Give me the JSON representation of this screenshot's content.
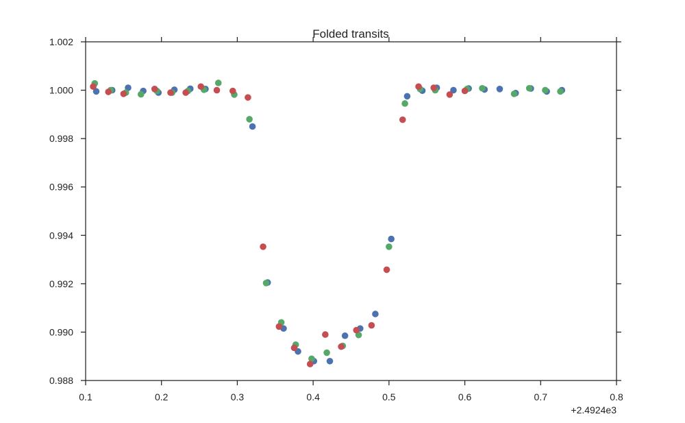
{
  "chart_data": {
    "type": "scatter",
    "title": "Folded transits",
    "xlabel": "",
    "ylabel": "",
    "x_offset_label": "+2.4924e3",
    "xlim": [
      0.1,
      0.8
    ],
    "ylim": [
      0.988,
      1.002
    ],
    "x_ticks": [
      0.1,
      0.2,
      0.3,
      0.4,
      0.5,
      0.6,
      0.7,
      0.8
    ],
    "x_tick_labels": [
      "0.1",
      "0.2",
      "0.3",
      "0.4",
      "0.5",
      "0.6",
      "0.7",
      "0.8"
    ],
    "y_ticks": [
      0.988,
      0.99,
      0.992,
      0.994,
      0.996,
      0.998,
      1.0,
      1.002
    ],
    "y_tick_labels": [
      "0.988",
      "0.990",
      "0.992",
      "0.994",
      "0.996",
      "0.998",
      "1.000",
      "1.002"
    ],
    "grid": false,
    "series": [
      {
        "color": "#4c72b0",
        "points": [
          [
            0.114,
            0.99995
          ],
          [
            0.135,
            1.0
          ],
          [
            0.156,
            1.0001
          ],
          [
            0.176,
            0.99997
          ],
          [
            0.196,
            0.9999
          ],
          [
            0.217,
            1.00002
          ],
          [
            0.238,
            1.00006
          ],
          [
            0.258,
            1.00005
          ],
          [
            0.32,
            0.9985
          ],
          [
            0.34,
            0.99205
          ],
          [
            0.361,
            0.99015
          ],
          [
            0.38,
            0.9892
          ],
          [
            0.401,
            0.9888
          ],
          [
            0.422,
            0.9888
          ],
          [
            0.442,
            0.98985
          ],
          [
            0.462,
            0.99015
          ],
          [
            0.482,
            0.99075
          ],
          [
            0.503,
            0.99385
          ],
          [
            0.524,
            0.99975
          ],
          [
            0.544,
            0.99998
          ],
          [
            0.563,
            1.0001
          ],
          [
            0.585,
            1.0
          ],
          [
            0.605,
            1.00007
          ],
          [
            0.626,
            1.00003
          ],
          [
            0.646,
            1.00005
          ],
          [
            0.667,
            0.99988
          ],
          [
            0.687,
            1.00007
          ],
          [
            0.708,
            0.99995
          ],
          [
            0.728,
            1.0
          ]
        ]
      },
      {
        "color": "#55a868",
        "points": [
          [
            0.112,
            1.00028
          ],
          [
            0.133,
            1.0
          ],
          [
            0.153,
            0.9999
          ],
          [
            0.173,
            0.99983
          ],
          [
            0.194,
            0.99997
          ],
          [
            0.214,
            0.9999
          ],
          [
            0.235,
            0.99997
          ],
          [
            0.256,
            1.00002
          ],
          [
            0.275,
            1.0003
          ],
          [
            0.296,
            0.99982
          ],
          [
            0.316,
            0.9988
          ],
          [
            0.338,
            0.99203
          ],
          [
            0.358,
            0.9904
          ],
          [
            0.377,
            0.98948
          ],
          [
            0.398,
            0.9889
          ],
          [
            0.418,
            0.98915
          ],
          [
            0.439,
            0.98943
          ],
          [
            0.46,
            0.98988
          ],
          [
            0.5,
            0.99353
          ],
          [
            0.521,
            0.99945
          ],
          [
            0.541,
            1.00005
          ],
          [
            0.561,
            1.0
          ],
          [
            0.603,
            1.00005
          ],
          [
            0.623,
            1.00008
          ],
          [
            0.665,
            0.99985
          ],
          [
            0.685,
            1.00008
          ],
          [
            0.706,
            1.0
          ],
          [
            0.726,
            0.99995
          ]
        ]
      },
      {
        "color": "#c44e52",
        "points": [
          [
            0.11,
            1.00015
          ],
          [
            0.13,
            0.99993
          ],
          [
            0.15,
            0.99985
          ],
          [
            0.191,
            1.00005
          ],
          [
            0.212,
            0.9999
          ],
          [
            0.232,
            0.9999
          ],
          [
            0.252,
            1.00015
          ],
          [
            0.273,
            1.0
          ],
          [
            0.294,
            0.99997
          ],
          [
            0.314,
            0.9997
          ],
          [
            0.334,
            0.99353
          ],
          [
            0.355,
            0.99023
          ],
          [
            0.375,
            0.98935
          ],
          [
            0.396,
            0.98868
          ],
          [
            0.416,
            0.9899
          ],
          [
            0.437,
            0.9894
          ],
          [
            0.457,
            0.99008
          ],
          [
            0.477,
            0.99028
          ],
          [
            0.497,
            0.99258
          ],
          [
            0.518,
            0.99878
          ],
          [
            0.539,
            1.00015
          ],
          [
            0.559,
            1.0001
          ],
          [
            0.58,
            0.99982
          ],
          [
            0.6,
            0.99997
          ]
        ]
      }
    ]
  }
}
